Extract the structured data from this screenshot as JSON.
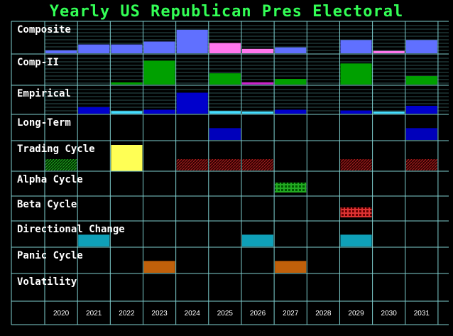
{
  "chart_data": {
    "type": "table",
    "title": "Yearly US Republican Pres Electoral",
    "years": [
      "2020",
      "2021",
      "2022",
      "2023",
      "2024",
      "2025",
      "2026",
      "2027",
      "2028",
      "2029",
      "2030",
      "2031"
    ],
    "rows": [
      {
        "label": "Composite",
        "bars": [
          {
            "year": "2020",
            "value": 0.1,
            "color": "#6070ff"
          },
          {
            "year": "2021",
            "value": 0.3,
            "color": "#6070ff"
          },
          {
            "year": "2022",
            "value": 0.3,
            "color": "#6070ff"
          },
          {
            "year": "2023",
            "value": 0.4,
            "color": "#6070ff"
          },
          {
            "year": "2024",
            "value": 0.8,
            "color": "#6070ff"
          },
          {
            "year": "2025",
            "value": 0.35,
            "color": "#ff77ee"
          },
          {
            "year": "2026",
            "value": 0.15,
            "color": "#ff77ee"
          },
          {
            "year": "2027",
            "value": 0.2,
            "color": "#6070ff"
          },
          {
            "year": "2029",
            "value": 0.45,
            "color": "#6070ff"
          },
          {
            "year": "2030",
            "value": 0.08,
            "color": "#ff77ee"
          },
          {
            "year": "2031",
            "value": 0.45,
            "color": "#6070ff"
          }
        ]
      },
      {
        "label": "Comp-II",
        "bars": [
          {
            "year": "2022",
            "value": 0.06,
            "color": "#00a000"
          },
          {
            "year": "2023",
            "value": 0.85,
            "color": "#00a000"
          },
          {
            "year": "2025",
            "value": 0.4,
            "color": "#00a000"
          },
          {
            "year": "2026",
            "value": 0.08,
            "color": "#cc22cc"
          },
          {
            "year": "2027",
            "value": 0.2,
            "color": "#00a000"
          },
          {
            "year": "2029",
            "value": 0.75,
            "color": "#00a000"
          },
          {
            "year": "2031",
            "value": 0.3,
            "color": "#00a000"
          }
        ]
      },
      {
        "label": "Empirical",
        "bars": [
          {
            "year": "2021",
            "value": 0.25,
            "color": "#0000cc"
          },
          {
            "year": "2022",
            "value": 0.1,
            "color": "#44ddff"
          },
          {
            "year": "2023",
            "value": 0.15,
            "color": "#0000cc"
          },
          {
            "year": "2024",
            "value": 0.8,
            "color": "#0000cc"
          },
          {
            "year": "2025",
            "value": 0.1,
            "color": "#44ddff"
          },
          {
            "year": "2026",
            "value": 0.05,
            "color": "#44ddff"
          },
          {
            "year": "2027",
            "value": 0.15,
            "color": "#0000cc"
          },
          {
            "year": "2029",
            "value": 0.12,
            "color": "#0000cc"
          },
          {
            "year": "2030",
            "value": 0.08,
            "color": "#44ddff"
          },
          {
            "year": "2031",
            "value": 0.3,
            "color": "#0000cc"
          }
        ]
      },
      {
        "label": "Long-Term",
        "blocks": [
          {
            "year": "2025",
            "color": "#0000bb",
            "style": "solid"
          },
          {
            "year": "2031",
            "color": "#0000bb",
            "style": "solid"
          }
        ]
      },
      {
        "label": "Trading Cycle",
        "blocks": [
          {
            "year": "2020",
            "color": "#006600",
            "style": "hatch-low"
          },
          {
            "year": "2022",
            "color": "#ffff55",
            "style": "solid"
          },
          {
            "year": "2024",
            "color": "#881111",
            "style": "hatch-low"
          },
          {
            "year": "2025",
            "color": "#881111",
            "style": "hatch-low"
          },
          {
            "year": "2026",
            "color": "#881111",
            "style": "hatch-low"
          },
          {
            "year": "2029",
            "color": "#881111",
            "style": "hatch-low"
          },
          {
            "year": "2031",
            "color": "#881111",
            "style": "hatch-low"
          }
        ]
      },
      {
        "label": "Alpha Cycle",
        "blocks": [
          {
            "year": "2027",
            "color": "#22aa22",
            "style": "grid"
          }
        ]
      },
      {
        "label": "Beta Cycle",
        "blocks": [
          {
            "year": "2029",
            "color": "#dd2222",
            "style": "grid"
          }
        ]
      },
      {
        "label": "Directional Change",
        "blocks": [
          {
            "year": "2021",
            "color": "#0fa0b8",
            "style": "solid"
          },
          {
            "year": "2026",
            "color": "#0fa0b8",
            "style": "solid"
          },
          {
            "year": "2029",
            "color": "#0fa0b8",
            "style": "solid"
          }
        ]
      },
      {
        "label": "Panic Cycle",
        "blocks": [
          {
            "year": "2023",
            "color": "#c0600a",
            "style": "solid"
          },
          {
            "year": "2027",
            "color": "#c0600a",
            "style": "solid"
          }
        ]
      },
      {
        "label": "Volatility",
        "blocks": []
      }
    ],
    "grid": true,
    "colors": {
      "background": "#000000",
      "grid": "#7fd0d0",
      "title": "#33ff55",
      "text": "#ffffff"
    }
  }
}
